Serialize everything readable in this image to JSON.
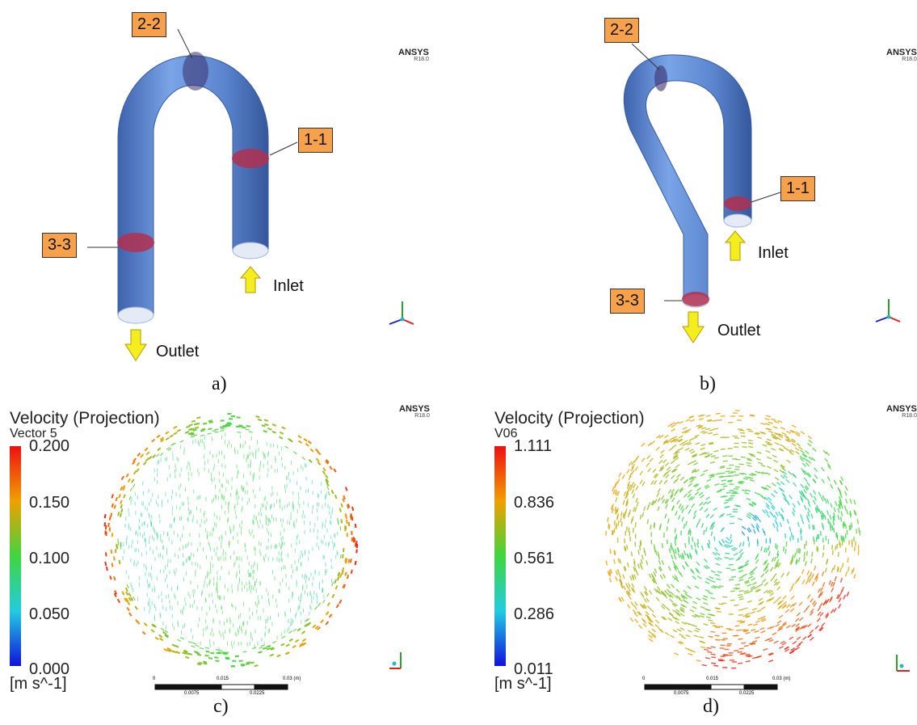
{
  "panels": {
    "a": {
      "caption": "a)",
      "watermark": "ANSYS",
      "version": "R18.0",
      "sections": [
        "2-2",
        "1-1",
        "3-3"
      ],
      "inlet": "Inlet",
      "outlet": "Outlet"
    },
    "b": {
      "caption": "b)",
      "watermark": "ANSYS",
      "version": "R18.0",
      "sections": [
        "2-2",
        "1-1",
        "3-3"
      ],
      "inlet": "Inlet",
      "outlet": "Outlet"
    },
    "c": {
      "caption": "c)",
      "watermark": "ANSYS",
      "version": "R18.0",
      "legend_title": "Velocity (Projection)",
      "legend_subtitle": "Vector 5",
      "ticks": [
        "0.200",
        "0.150",
        "0.100",
        "0.050",
        "0.000"
      ],
      "unit": "[m s^-1]",
      "scale_top": [
        "0",
        "0.015",
        "0.03  (m)"
      ],
      "scale_bottom": [
        "0.0075",
        "0.0225"
      ]
    },
    "d": {
      "caption": "d)",
      "watermark": "ANSYS",
      "version": "R18.0",
      "legend_title": "Velocity (Projection)",
      "legend_subtitle": "V06",
      "ticks": [
        "1.111",
        "0.836",
        "0.561",
        "0.286",
        "0.011"
      ],
      "unit": "[m s^-1]",
      "scale_top": [
        "0",
        "0.015",
        "0.03  (m)"
      ],
      "scale_bottom": [
        "0.0075",
        "0.0225"
      ]
    }
  },
  "colors": {
    "pipe": "#5b86cf",
    "section": "#b2304f",
    "tag": "#f7a24a",
    "arrow": "#f5ee1e"
  }
}
